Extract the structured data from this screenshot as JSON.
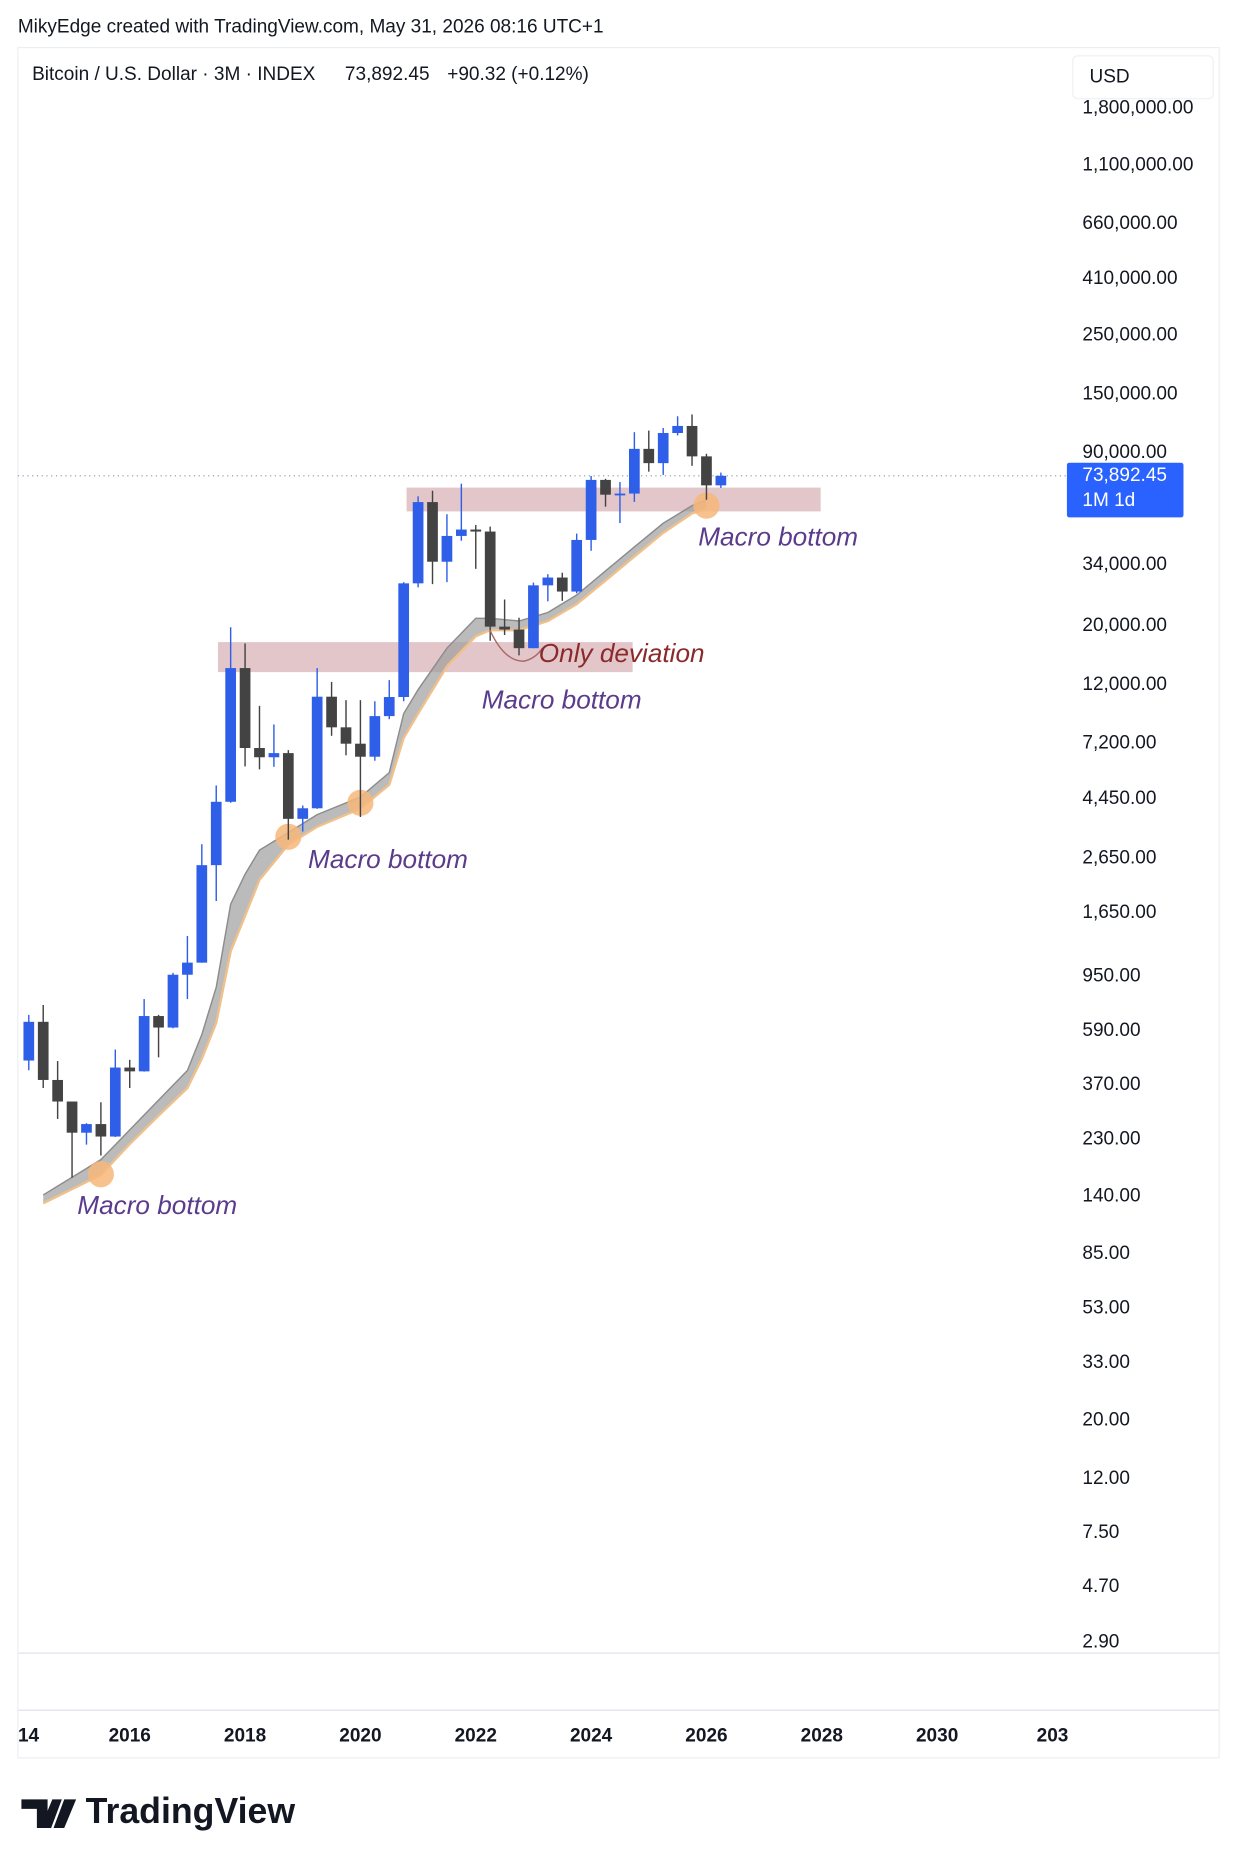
{
  "header": {
    "attribution": "MikyEdge created with TradingView.com, May 31, 2026 08:16 UTC+1",
    "symbol": "Bitcoin / U.S. Dollar · 3M · INDEX",
    "price": "73,892.45",
    "change": "+90.32 (+0.12%)",
    "currency": "USD"
  },
  "chart_data": {
    "type": "candlestick",
    "x": [
      2014.25,
      2014.5,
      2014.75,
      2015,
      2015.25,
      2015.5,
      2015.75,
      2016,
      2016.25,
      2016.5,
      2016.75,
      2017,
      2017.25,
      2017.5,
      2017.75,
      2018,
      2018.25,
      2018.5,
      2018.75,
      2019,
      2019.25,
      2019.5,
      2019.75,
      2020,
      2020.25,
      2020.5,
      2020.75,
      2021,
      2021.25,
      2021.5,
      2021.75,
      2022,
      2022.25,
      2022.5,
      2022.75,
      2023,
      2023.25,
      2023.5,
      2023.75,
      2024,
      2024.25,
      2024.5,
      2024.75,
      2025,
      2025.25,
      2025.5,
      2025.75,
      2026,
      2026.25
    ],
    "open": [
      457,
      640,
      386,
      320,
      244,
      263,
      236,
      430,
      416,
      673,
      609,
      964,
      1071,
      2500,
      4338,
      13880,
      6925,
      6390,
      6625,
      3740,
      4100,
      10820,
      8290,
      7190,
      6420,
      9140,
      10790,
      29000,
      58800,
      35000,
      43800,
      46300,
      45500,
      19900,
      19400,
      16500,
      28500,
      30500,
      27000,
      42300,
      71300,
      62700,
      63300,
      93400,
      82500,
      107200,
      114000,
      87500,
      68000
    ],
    "high": [
      680,
      741,
      455,
      320,
      265,
      318,
      503,
      460,
      780,
      680,
      980,
      1350,
      3000,
      5000,
      19800,
      17200,
      9990,
      8500,
      6800,
      4200,
      13880,
      12300,
      10500,
      10500,
      10400,
      12500,
      29300,
      61800,
      64900,
      52900,
      69000,
      48200,
      47500,
      25200,
      21500,
      29200,
      31400,
      31800,
      44700,
      73800,
      72000,
      70000,
      108000,
      109500,
      112000,
      124000,
      126000,
      89500,
      76000
    ],
    "low": [
      420,
      360,
      275,
      165,
      220,
      200,
      235,
      360,
      415,
      470,
      605,
      780,
      1070,
      1830,
      4300,
      5900,
      5750,
      5880,
      3120,
      3350,
      4080,
      7700,
      6500,
      3800,
      6200,
      8900,
      10400,
      28000,
      28800,
      29300,
      42000,
      32900,
      17600,
      18500,
      15500,
      16500,
      24800,
      24900,
      26600,
      38500,
      56500,
      49000,
      58900,
      76600,
      74500,
      105000,
      80600,
      60000,
      66500
    ],
    "close": [
      640,
      386,
      320,
      244,
      263,
      236,
      430,
      416,
      673,
      609,
      964,
      1071,
      2500,
      4338,
      13880,
      6925,
      6390,
      6625,
      3740,
      4100,
      10820,
      8290,
      7190,
      6420,
      9140,
      10790,
      29000,
      58800,
      35000,
      43800,
      46300,
      45500,
      19900,
      19400,
      16500,
      28500,
      30500,
      27000,
      42300,
      71300,
      62700,
      63300,
      93400,
      82500,
      107200,
      114000,
      87500,
      68000,
      73892.45
    ],
    "up_color": "#2f5fe8",
    "down_color": "#434343",
    "log_scale": true,
    "xlim": [
      2014.06,
      2032.25
    ],
    "ylim": [
      2.64,
      3000000
    ],
    "xticks": [
      {
        "value": 2014,
        "label": "14"
      },
      2016,
      2018,
      2020,
      2022,
      2024,
      2026,
      2028,
      2030,
      {
        "value": 2032,
        "label": "203"
      }
    ],
    "yticks": [
      {
        "value": 1800000,
        "label": "1,800,000.00"
      },
      {
        "value": 1100000,
        "label": "1,100,000.00"
      },
      {
        "value": 660000,
        "label": "660,000.00"
      },
      {
        "value": 410000,
        "label": "410,000.00"
      },
      {
        "value": 250000,
        "label": "250,000.00"
      },
      {
        "value": 150000,
        "label": "150,000.00"
      },
      {
        "value": 90000,
        "label": "90,000.00"
      },
      {
        "value": 34000,
        "label": "34,000.00"
      },
      {
        "value": 20000,
        "label": "20,000.00"
      },
      {
        "value": 12000,
        "label": "12,000.00"
      },
      {
        "value": 7200,
        "label": "7,200.00"
      },
      {
        "value": 4450,
        "label": "4,450.00"
      },
      {
        "value": 2650,
        "label": "2,650.00"
      },
      {
        "value": 1650,
        "label": "1,650.00"
      },
      {
        "value": 950,
        "label": "950.00"
      },
      {
        "value": 590,
        "label": "590.00"
      },
      {
        "value": 370,
        "label": "370.00"
      },
      {
        "value": 230,
        "label": "230.00"
      },
      {
        "value": 140,
        "label": "140.00"
      },
      {
        "value": 85,
        "label": "85.00"
      },
      {
        "value": 53,
        "label": "53.00"
      },
      {
        "value": 33,
        "label": "33.00"
      },
      {
        "value": 20,
        "label": "20.00"
      },
      {
        "value": 12,
        "label": "12.00"
      },
      {
        "value": 7.5,
        "label": "7.50"
      },
      {
        "value": 4.7,
        "label": "4.70"
      },
      {
        "value": 2.9,
        "label": "2.90"
      }
    ],
    "ribbon": {
      "x": [
        2014.5,
        2015.5,
        2016,
        2016.5,
        2017,
        2017.25,
        2017.5,
        2017.75,
        2018,
        2018.25,
        2018.75,
        2019.25,
        2020,
        2020.5,
        2020.75,
        2021,
        2021.5,
        2022,
        2022.25,
        2022.75,
        2023.25,
        2023.75,
        2024.25,
        2024.75,
        2025.25,
        2025.75,
        2026
      ],
      "upper": [
        142,
        193,
        250,
        324,
        419,
        573,
        865,
        1780,
        2310,
        2850,
        3320,
        3880,
        4520,
        5590,
        9340,
        11500,
        16500,
        21400,
        21400,
        20900,
        22500,
        26200,
        32300,
        39800,
        48900,
        57000,
        60000
      ],
      "lower": [
        132,
        169,
        221,
        283,
        360,
        464,
        634,
        1180,
        1610,
        2200,
        2990,
        3490,
        4090,
        5030,
        7560,
        9340,
        14100,
        18300,
        19300,
        19300,
        20900,
        24200,
        29700,
        36600,
        45000,
        53300,
        55200
      ],
      "fill": "#9e9e9e",
      "upper_color": "#8c8c8c",
      "lower_color": "#f0c08a"
    },
    "zones": [
      {
        "x": [
          2017.53,
          2024.72
        ],
        "y": [
          13400,
          17400
        ]
      },
      {
        "x": [
          2020.8,
          2027.98
        ],
        "y": [
          54200,
          66700
        ]
      }
    ],
    "zone_color": "#d9b3b7",
    "highlights": {
      "x": [
        2015.5,
        2018.75,
        2020.0,
        2026.0
      ],
      "y": [
        170,
        3200,
        4300,
        57000
      ],
      "color": "#f7b77a"
    },
    "annotations": [
      "Macro bottom",
      "Macro bottom",
      "Only deviation",
      "Macro bottom",
      "Macro bottom"
    ],
    "last_price": {
      "value": 73892.45,
      "label": "73,892.45"
    },
    "countdown": "1M 1d"
  },
  "footer": {
    "brand": "TradingView"
  }
}
